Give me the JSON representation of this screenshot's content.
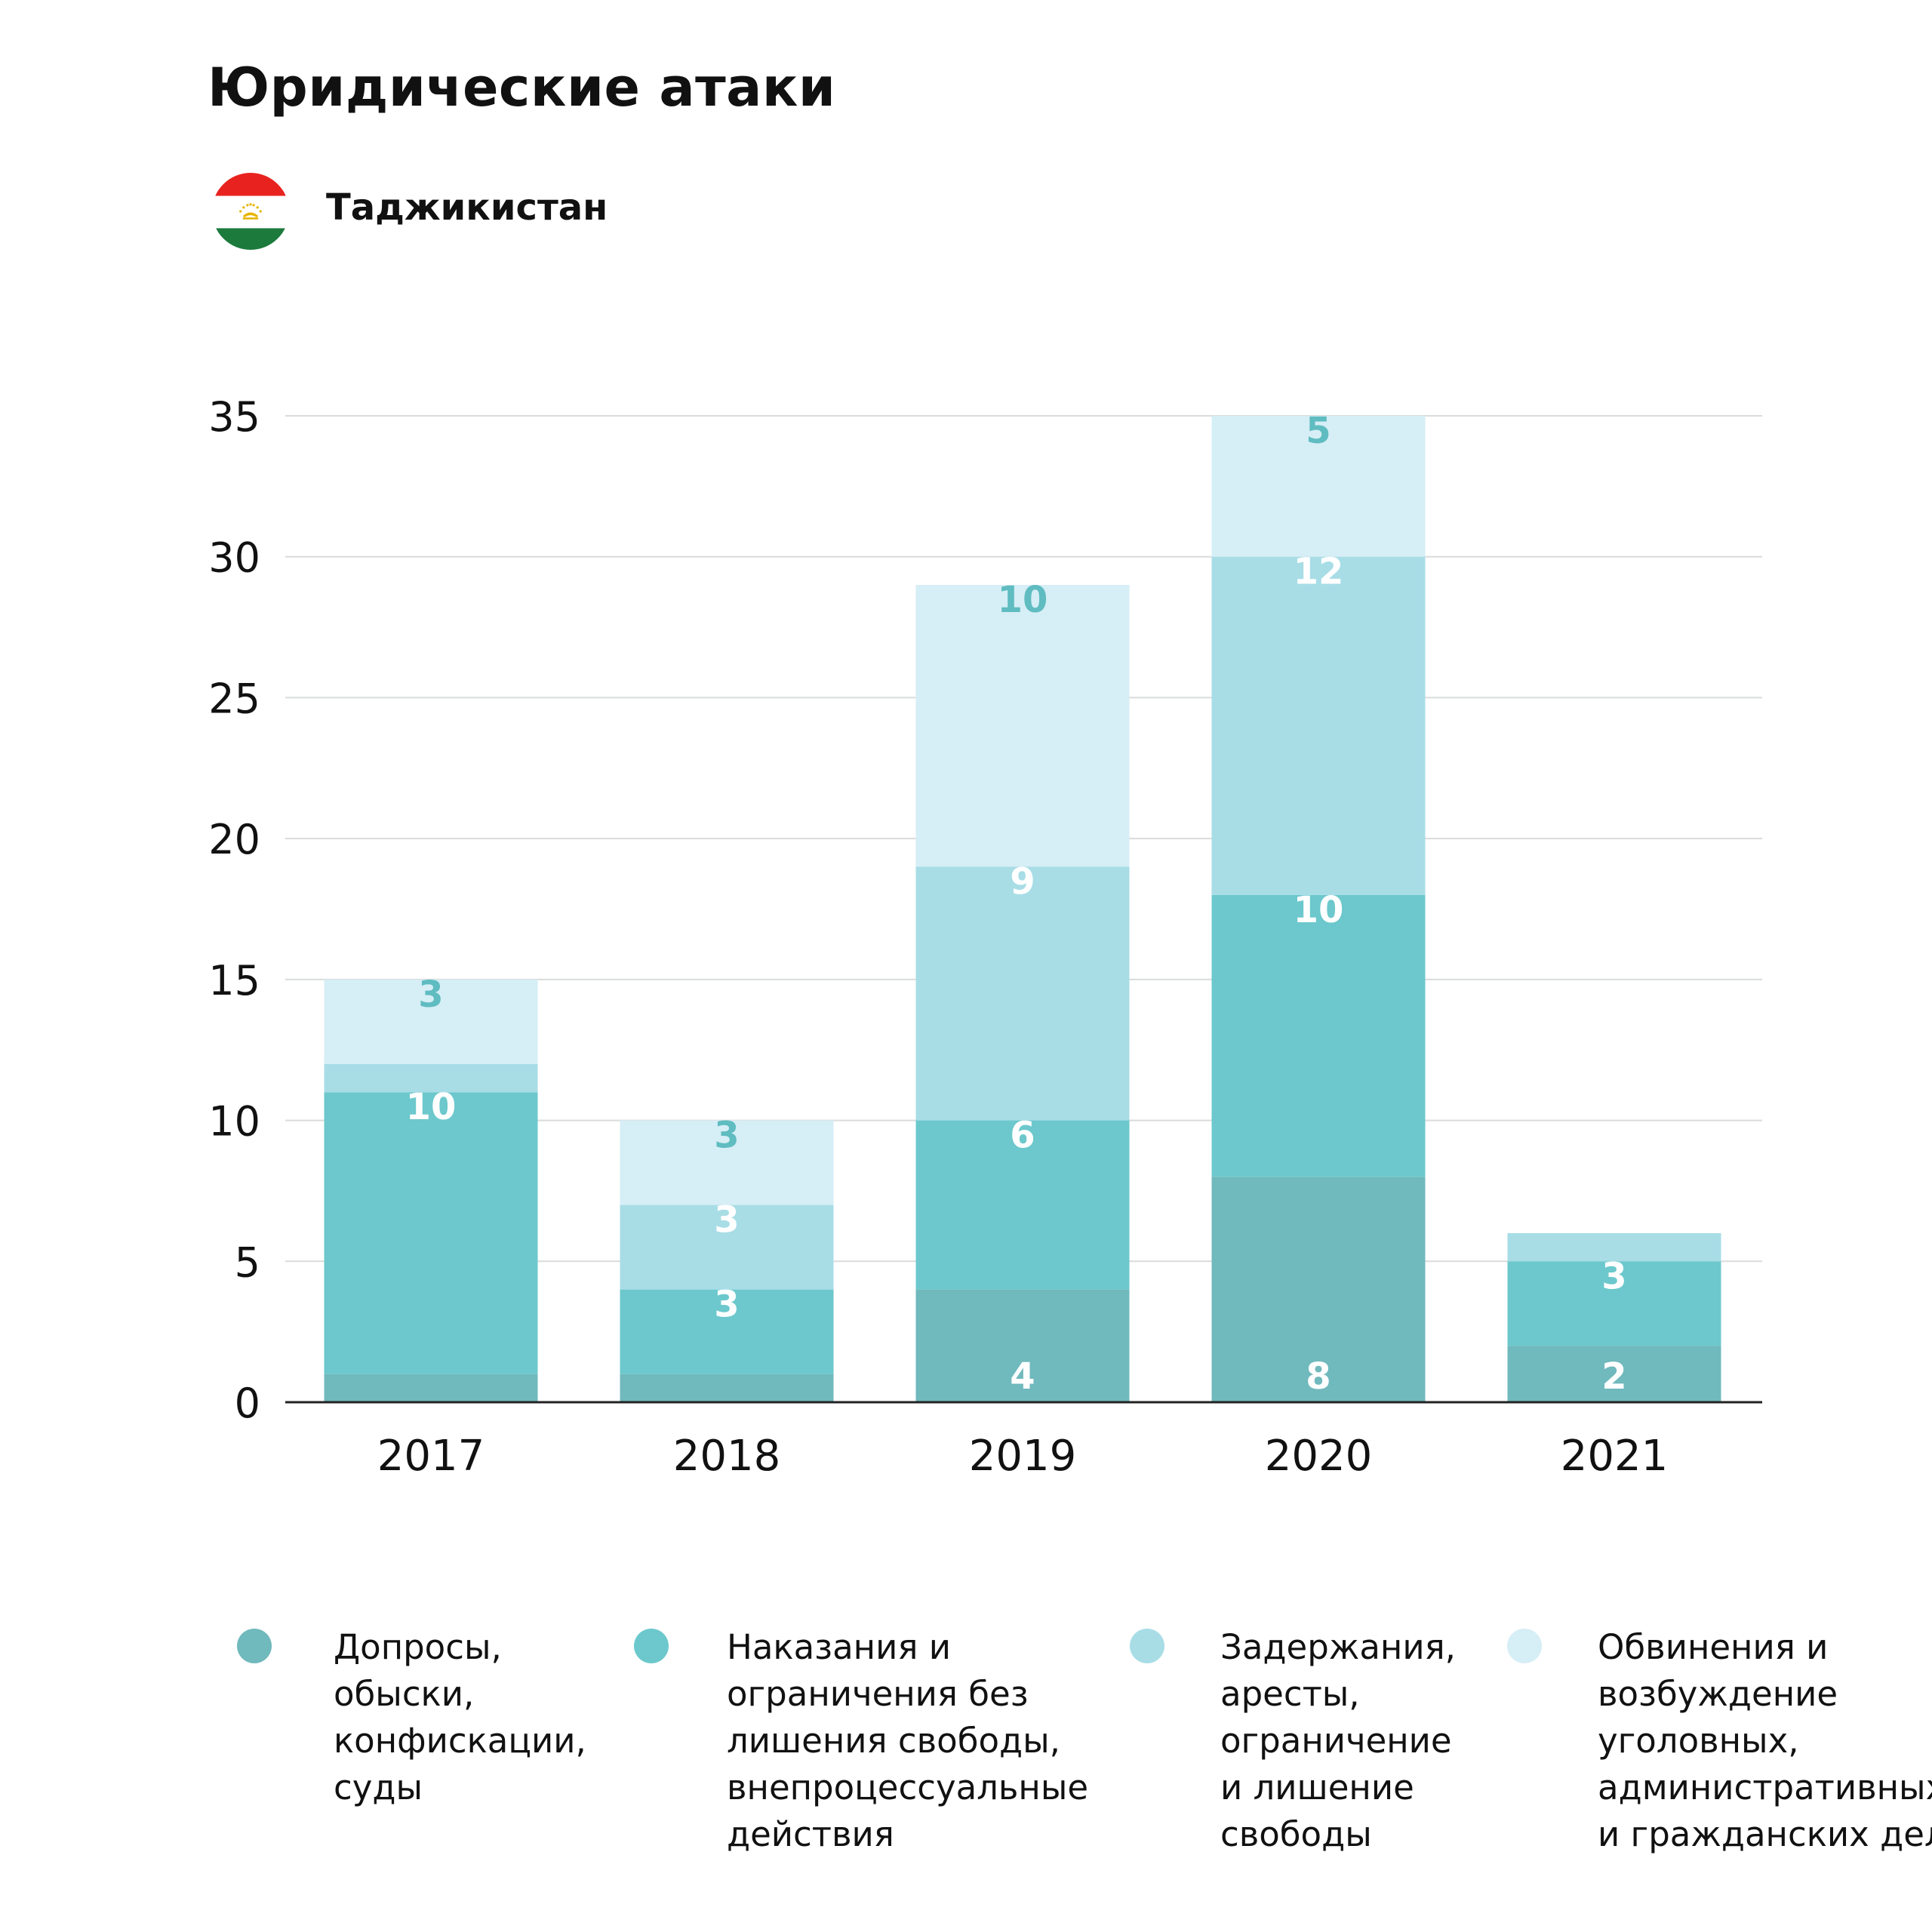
{
  "header": {
    "title": "Юридические атаки",
    "country": "Таджикистан"
  },
  "colors": {
    "flag_red": "#e8231f",
    "flag_white": "#ffffff",
    "flag_green": "#1c7a3c",
    "flag_emblem": "#e6b400",
    "gridline": "#d9dcdc",
    "baseline": "#222222"
  },
  "chart_data": {
    "type": "bar",
    "stacked": true,
    "categories": [
      "2017",
      "2018",
      "2019",
      "2020",
      "2021"
    ],
    "ylim": [
      0,
      35
    ],
    "yticks": [
      0,
      5,
      10,
      15,
      20,
      25,
      30,
      35
    ],
    "grid": true,
    "legend_position": "bottom",
    "series": [
      {
        "name": "Допросы,\nобыски,\nконфискации,\nсуды",
        "color": "#70b9bd",
        "label_color": "#ffffff",
        "values": [
          1,
          1,
          4,
          8,
          2
        ],
        "labels": [
          "",
          "",
          "4",
          "8",
          "2"
        ]
      },
      {
        "name": "Наказания и\nограничения без\nлишения свободы,\nвнепроцессуальные\nдействия",
        "color": "#6cc8cc",
        "label_color": "#ffffff",
        "values": [
          10,
          3,
          6,
          10,
          3
        ],
        "labels": [
          "10",
          "3",
          "6",
          "10",
          "3"
        ]
      },
      {
        "name": "Задержания,\nаресты,\nограничение\nи лишение\nсвободы",
        "color": "#a8dde6",
        "label_color": "#ffffff",
        "values": [
          1,
          3,
          9,
          12,
          1
        ],
        "labels": [
          "",
          "3",
          "9",
          "12",
          ""
        ]
      },
      {
        "name": "Обвинения и\nвозбуждение\nуголовных,\nадминистративных\nи гражданских дел",
        "color": "#d6eef6",
        "label_color": "#5fbcc0",
        "values": [
          3,
          3,
          10,
          5,
          0
        ],
        "labels": [
          "3",
          "3",
          "10",
          "5",
          ""
        ]
      }
    ]
  }
}
